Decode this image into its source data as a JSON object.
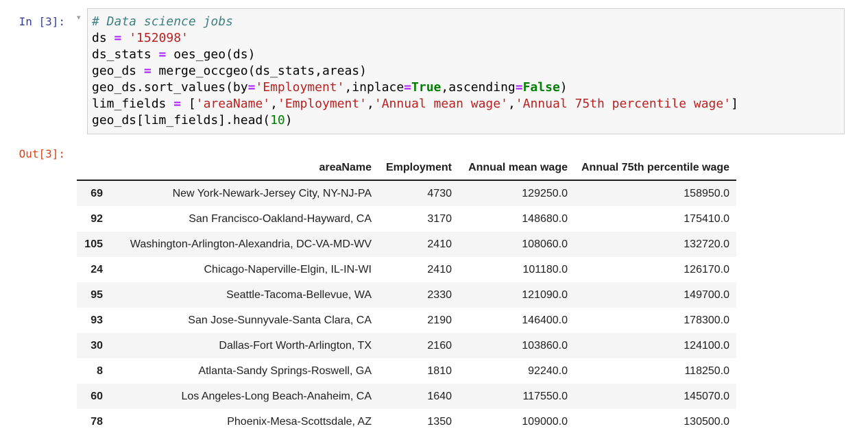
{
  "cell": {
    "input_prompt": "In [3]:",
    "output_prompt": "Out[3]:",
    "collapse_arrow": "▾",
    "code_lines": [
      [
        {
          "t": "# Data science jobs",
          "s": "comment"
        }
      ],
      [
        {
          "t": "ds ",
          "s": "plain"
        },
        {
          "t": "=",
          "s": "op"
        },
        {
          "t": " ",
          "s": "plain"
        },
        {
          "t": "'152098'",
          "s": "string"
        }
      ],
      [
        {
          "t": "ds_stats ",
          "s": "plain"
        },
        {
          "t": "=",
          "s": "op"
        },
        {
          "t": " oes_geo(ds)",
          "s": "plain"
        }
      ],
      [
        {
          "t": "geo_ds ",
          "s": "plain"
        },
        {
          "t": "=",
          "s": "op"
        },
        {
          "t": " merge_occgeo(ds_stats,areas)",
          "s": "plain"
        }
      ],
      [
        {
          "t": "geo_ds.sort_values(by",
          "s": "plain"
        },
        {
          "t": "=",
          "s": "op"
        },
        {
          "t": "'Employment'",
          "s": "string"
        },
        {
          "t": ",inplace",
          "s": "plain"
        },
        {
          "t": "=",
          "s": "op"
        },
        {
          "t": "True",
          "s": "keyword"
        },
        {
          "t": ",ascending",
          "s": "plain"
        },
        {
          "t": "=",
          "s": "op"
        },
        {
          "t": "False",
          "s": "keyword"
        },
        {
          "t": ")",
          "s": "plain"
        }
      ],
      [
        {
          "t": "lim_fields ",
          "s": "plain"
        },
        {
          "t": "=",
          "s": "op"
        },
        {
          "t": " [",
          "s": "plain"
        },
        {
          "t": "'areaName'",
          "s": "string"
        },
        {
          "t": ",",
          "s": "plain"
        },
        {
          "t": "'Employment'",
          "s": "string"
        },
        {
          "t": ",",
          "s": "plain"
        },
        {
          "t": "'Annual mean wage'",
          "s": "string"
        },
        {
          "t": ",",
          "s": "plain"
        },
        {
          "t": "'Annual 75th percentile wage'",
          "s": "string"
        },
        {
          "t": "]",
          "s": "plain"
        }
      ],
      [
        {
          "t": "geo_ds[lim_fields].head(",
          "s": "plain"
        },
        {
          "t": "10",
          "s": "number"
        },
        {
          "t": ")",
          "s": "plain"
        }
      ]
    ]
  },
  "output_table": {
    "columns": [
      "areaName",
      "Employment",
      "Annual mean wage",
      "Annual 75th percentile wage"
    ],
    "rows": [
      {
        "index": "69",
        "cells": [
          "New York-Newark-Jersey City, NY-NJ-PA",
          "4730",
          "129250.0",
          "158950.0"
        ]
      },
      {
        "index": "92",
        "cells": [
          "San Francisco-Oakland-Hayward, CA",
          "3170",
          "148680.0",
          "175410.0"
        ]
      },
      {
        "index": "105",
        "cells": [
          "Washington-Arlington-Alexandria, DC-VA-MD-WV",
          "2410",
          "108060.0",
          "132720.0"
        ]
      },
      {
        "index": "24",
        "cells": [
          "Chicago-Naperville-Elgin, IL-IN-WI",
          "2410",
          "101180.0",
          "126170.0"
        ]
      },
      {
        "index": "95",
        "cells": [
          "Seattle-Tacoma-Bellevue, WA",
          "2330",
          "121090.0",
          "149700.0"
        ]
      },
      {
        "index": "93",
        "cells": [
          "San Jose-Sunnyvale-Santa Clara, CA",
          "2190",
          "146400.0",
          "178300.0"
        ]
      },
      {
        "index": "30",
        "cells": [
          "Dallas-Fort Worth-Arlington, TX",
          "2160",
          "103860.0",
          "124100.0"
        ]
      },
      {
        "index": "8",
        "cells": [
          "Atlanta-Sandy Springs-Roswell, GA",
          "1810",
          "92240.0",
          "118250.0"
        ]
      },
      {
        "index": "60",
        "cells": [
          "Los Angeles-Long Beach-Anaheim, CA",
          "1640",
          "117550.0",
          "145070.0"
        ]
      },
      {
        "index": "78",
        "cells": [
          "Phoenix-Mesa-Scottsdale, AZ",
          "1350",
          "109000.0",
          "130500.0"
        ]
      }
    ]
  },
  "colors": {
    "input_prompt": "#303F9F",
    "output_prompt": "#D84315",
    "comment": "#408080",
    "string": "#BA2121",
    "operator": "#AA22FF",
    "keyword": "#008000",
    "number": "#008000",
    "row_stripe": "#f5f5f5",
    "input_bg": "#f7f7f7",
    "input_border": "#cfcfcf"
  }
}
